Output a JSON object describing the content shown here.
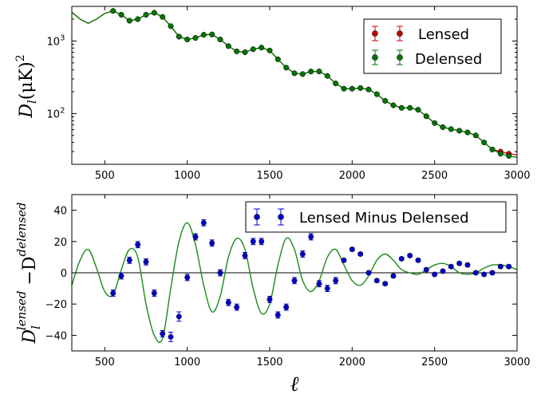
{
  "chart_data": [
    {
      "type": "line",
      "yscale": "log",
      "title": "",
      "xlim": [
        300,
        3000
      ],
      "ylim": [
        20,
        3000
      ],
      "xticks": [
        500,
        1000,
        1500,
        2000,
        2500,
        3000
      ],
      "yticks": [
        {
          "value": 100,
          "label_base": "10",
          "label_exp": "2"
        },
        {
          "value": 1000,
          "label_base": "10",
          "label_exp": "3"
        }
      ],
      "ylabel": {
        "base": "D",
        "sub": "l",
        "rest": "(μK)",
        "sup": "2"
      },
      "legend": {
        "position": "top-right",
        "entries": [
          {
            "label": "Lensed",
            "color": "#cc0000"
          },
          {
            "label": "Delensed",
            "color": "#007700"
          }
        ]
      },
      "curve": {
        "x": [
          300,
          350,
          400,
          450,
          500,
          550,
          600,
          650,
          700,
          750,
          800,
          850,
          900,
          950,
          1000,
          1050,
          1100,
          1150,
          1200,
          1250,
          1300,
          1350,
          1400,
          1450,
          1500,
          1550,
          1600,
          1650,
          1700,
          1750,
          1800,
          1850,
          1900,
          1950,
          2000,
          2050,
          2100,
          2150,
          2200,
          2250,
          2300,
          2350,
          2400,
          2450,
          2500,
          2550,
          2600,
          2650,
          2700,
          2750,
          2800,
          2850,
          2900,
          2950,
          3000
        ],
        "lensed": [
          2500,
          2000,
          1750,
          2000,
          2400,
          2600,
          2300,
          1900,
          2000,
          2300,
          2450,
          2150,
          1600,
          1150,
          1050,
          1100,
          1220,
          1230,
          1050,
          850,
          720,
          700,
          770,
          810,
          740,
          560,
          430,
          360,
          350,
          380,
          380,
          330,
          260,
          220,
          220,
          225,
          215,
          185,
          150,
          130,
          120,
          120,
          113,
          92,
          74,
          65,
          61,
          58,
          55,
          50,
          40,
          32,
          30,
          28,
          27
        ],
        "delensed": [
          2500,
          2000,
          1750,
          2000,
          2400,
          2600,
          2300,
          1900,
          2000,
          2300,
          2450,
          2150,
          1600,
          1150,
          1050,
          1100,
          1220,
          1230,
          1050,
          850,
          720,
          700,
          770,
          810,
          740,
          560,
          430,
          360,
          350,
          380,
          380,
          330,
          260,
          220,
          220,
          225,
          215,
          185,
          150,
          130,
          120,
          120,
          113,
          92,
          74,
          65,
          61,
          58,
          55,
          50,
          40,
          32,
          28,
          26,
          25
        ]
      },
      "series": [
        {
          "name": "Lensed",
          "color": "#cc0000",
          "x": [
            550,
            600,
            650,
            700,
            750,
            800,
            850,
            900,
            950,
            1000,
            1050,
            1100,
            1150,
            1200,
            1250,
            1300,
            1350,
            1400,
            1450,
            1500,
            1550,
            1600,
            1650,
            1700,
            1750,
            1800,
            1850,
            1900,
            1950,
            2000,
            2050,
            2100,
            2150,
            2200,
            2250,
            2300,
            2350,
            2400,
            2450,
            2500,
            2550,
            2600,
            2650,
            2700,
            2750,
            2800,
            2850,
            2900,
            2950
          ],
          "values": [
            2600,
            2300,
            1900,
            2000,
            2300,
            2450,
            2150,
            1600,
            1150,
            1050,
            1100,
            1220,
            1230,
            1050,
            850,
            720,
            700,
            770,
            810,
            740,
            560,
            430,
            360,
            350,
            380,
            380,
            330,
            260,
            220,
            220,
            225,
            215,
            185,
            150,
            130,
            120,
            120,
            113,
            92,
            74,
            65,
            61,
            58,
            55,
            50,
            40,
            32,
            30,
            28
          ]
        },
        {
          "name": "Delensed",
          "color": "#007700",
          "x": [
            550,
            600,
            650,
            700,
            750,
            800,
            850,
            900,
            950,
            1000,
            1050,
            1100,
            1150,
            1200,
            1250,
            1300,
            1350,
            1400,
            1450,
            1500,
            1550,
            1600,
            1650,
            1700,
            1750,
            1800,
            1850,
            1900,
            1950,
            2000,
            2050,
            2100,
            2150,
            2200,
            2250,
            2300,
            2350,
            2400,
            2450,
            2500,
            2550,
            2600,
            2650,
            2700,
            2750,
            2800,
            2850,
            2900,
            2950
          ],
          "values": [
            2600,
            2300,
            1900,
            2000,
            2300,
            2450,
            2150,
            1600,
            1150,
            1050,
            1100,
            1220,
            1230,
            1050,
            850,
            720,
            700,
            770,
            810,
            740,
            560,
            430,
            360,
            350,
            380,
            380,
            330,
            260,
            220,
            220,
            225,
            215,
            185,
            150,
            130,
            120,
            120,
            113,
            92,
            74,
            65,
            61,
            58,
            55,
            50,
            40,
            32,
            28,
            26
          ]
        }
      ]
    },
    {
      "type": "scatter",
      "title": "",
      "xlim": [
        300,
        3000
      ],
      "ylim": [
        -50,
        50
      ],
      "xticks": [
        500,
        1000,
        1500,
        2000,
        2500,
        3000
      ],
      "yticks": [
        -40,
        -20,
        0,
        20,
        40
      ],
      "xlabel": "ℓ",
      "ylabel": {
        "base": "D",
        "sub": "l",
        "sup1": "lensed",
        "mid": " −D",
        "sup2": "delensed"
      },
      "zero_line": true,
      "legend": {
        "position": "top-right",
        "entries": [
          {
            "label": "Lensed Minus Delensed",
            "color": "#0000cc"
          }
        ]
      },
      "curve": {
        "color": "#1a8c1a",
        "x": [
          300,
          350,
          400,
          450,
          500,
          550,
          600,
          650,
          700,
          750,
          800,
          850,
          900,
          950,
          1000,
          1050,
          1100,
          1150,
          1200,
          1250,
          1300,
          1350,
          1400,
          1450,
          1500,
          1550,
          1600,
          1650,
          1700,
          1750,
          1800,
          1850,
          1900,
          1950,
          2000,
          2050,
          2100,
          2150,
          2200,
          2250,
          2300,
          2350,
          2400,
          2450,
          2500,
          2550,
          2600,
          2650,
          2700,
          2750,
          2800,
          2850,
          2900,
          2950,
          3000
        ],
        "values": [
          -8,
          8,
          15,
          3,
          -12,
          -14,
          2,
          15,
          10,
          -20,
          -40,
          -42,
          -10,
          20,
          32,
          18,
          -8,
          -25,
          -15,
          10,
          22,
          15,
          -10,
          -26,
          -20,
          5,
          22,
          15,
          -5,
          -12,
          -5,
          10,
          15,
          5,
          -5,
          -8,
          -2,
          8,
          12,
          8,
          2,
          0,
          -1,
          2,
          5,
          6,
          4,
          0,
          -1,
          0,
          3,
          5,
          5,
          4,
          2
        ]
      },
      "series": [
        {
          "name": "Lensed Minus Delensed",
          "color": "#0000cc",
          "x": [
            550,
            600,
            650,
            700,
            750,
            800,
            850,
            900,
            950,
            1000,
            1050,
            1100,
            1150,
            1200,
            1250,
            1300,
            1350,
            1400,
            1450,
            1500,
            1550,
            1600,
            1650,
            1700,
            1750,
            1800,
            1850,
            1900,
            1950,
            2000,
            2050,
            2100,
            2150,
            2200,
            2250,
            2300,
            2350,
            2400,
            2450,
            2500,
            2550,
            2600,
            2650,
            2700,
            2750,
            2800,
            2850,
            2900,
            2950
          ],
          "values": [
            -13,
            -2,
            8,
            18,
            7,
            -13,
            -39,
            -41,
            -28,
            -3,
            23,
            32,
            19,
            0,
            -19,
            -22,
            11,
            20,
            20,
            -17,
            -27,
            -22,
            -5,
            12,
            23,
            -7,
            -10,
            -5,
            8,
            15,
            12,
            0,
            -5,
            -7,
            -2,
            9,
            11,
            8,
            2,
            -1,
            1,
            4,
            6,
            5,
            0,
            -1,
            0,
            4,
            4
          ],
          "errors": [
            2,
            2,
            2,
            2,
            2,
            2,
            2,
            3,
            3,
            2,
            2,
            2,
            2,
            2,
            2,
            2,
            2,
            2,
            2,
            2,
            2,
            2,
            2,
            2,
            2,
            2,
            2,
            2,
            1,
            1,
            1,
            1,
            1,
            1,
            1,
            1,
            1,
            1,
            1,
            1,
            1,
            1,
            1,
            1,
            1,
            1,
            1,
            1,
            1
          ]
        }
      ]
    }
  ]
}
